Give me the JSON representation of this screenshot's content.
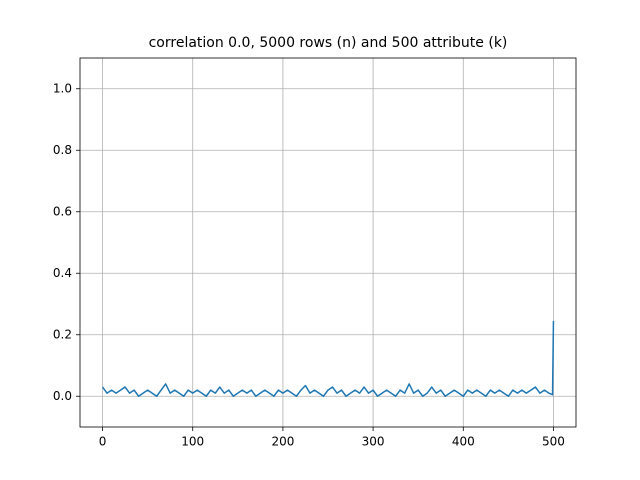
{
  "chart_data": {
    "type": "line",
    "title": "correlation 0.0, 5000 rows (n) and 500 attribute (k)",
    "x": [
      0,
      5,
      10,
      15,
      20,
      25,
      30,
      35,
      40,
      45,
      50,
      55,
      60,
      65,
      70,
      75,
      80,
      85,
      90,
      95,
      100,
      105,
      110,
      115,
      120,
      125,
      130,
      135,
      140,
      145,
      150,
      155,
      160,
      165,
      170,
      175,
      180,
      185,
      190,
      195,
      200,
      205,
      210,
      215,
      220,
      225,
      230,
      235,
      240,
      245,
      250,
      255,
      260,
      265,
      270,
      275,
      280,
      285,
      290,
      295,
      300,
      305,
      310,
      315,
      320,
      325,
      330,
      335,
      340,
      345,
      350,
      355,
      360,
      365,
      370,
      375,
      380,
      385,
      390,
      395,
      400,
      405,
      410,
      415,
      420,
      425,
      430,
      435,
      440,
      445,
      450,
      455,
      460,
      465,
      470,
      475,
      480,
      485,
      490,
      495,
      499,
      500
    ],
    "values": [
      0.03,
      0.01,
      0.02,
      0.01,
      0.02,
      0.03,
      0.01,
      0.02,
      0.0,
      0.01,
      0.02,
      0.01,
      0.0,
      0.02,
      0.04,
      0.01,
      0.02,
      0.01,
      0.0,
      0.02,
      0.01,
      0.02,
      0.01,
      0.0,
      0.02,
      0.01,
      0.03,
      0.01,
      0.02,
      0.0,
      0.01,
      0.02,
      0.01,
      0.02,
      0.0,
      0.01,
      0.02,
      0.01,
      0.0,
      0.02,
      0.01,
      0.02,
      0.01,
      0.0,
      0.02,
      0.035,
      0.01,
      0.02,
      0.01,
      0.0,
      0.02,
      0.03,
      0.01,
      0.02,
      0.0,
      0.01,
      0.02,
      0.01,
      0.03,
      0.01,
      0.02,
      0.0,
      0.01,
      0.02,
      0.01,
      0.0,
      0.02,
      0.01,
      0.04,
      0.01,
      0.02,
      0.0,
      0.01,
      0.03,
      0.01,
      0.02,
      0.0,
      0.01,
      0.02,
      0.01,
      0.0,
      0.02,
      0.01,
      0.02,
      0.01,
      0.0,
      0.02,
      0.01,
      0.02,
      0.01,
      0.0,
      0.02,
      0.01,
      0.02,
      0.01,
      0.02,
      0.03,
      0.01,
      0.02,
      0.01,
      0.005,
      0.245
    ],
    "color": "#1f77b4",
    "xlim": [
      -25,
      525
    ],
    "xticks": [
      0,
      100,
      200,
      300,
      400,
      500
    ],
    "ylim": [
      -0.1,
      1.1
    ],
    "yticks": [
      {
        "value": 0,
        "label": "0.0"
      },
      0.2,
      0.4,
      0.6,
      0.8,
      {
        "value": 1,
        "label": "1.0"
      }
    ],
    "grid": true
  }
}
